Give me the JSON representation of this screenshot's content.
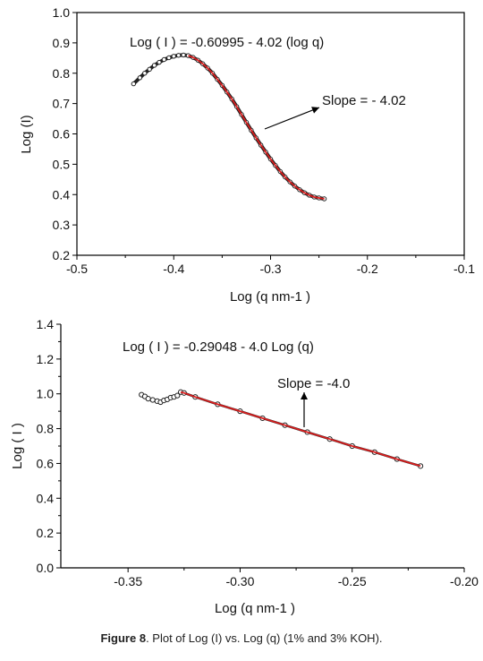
{
  "chart_data": [
    {
      "type": "scatter",
      "ylabel": "Log (I)",
      "xlabel": "Log (q nm-1 )",
      "xlim": [
        -0.5,
        -0.1
      ],
      "ylim": [
        0.2,
        1.0
      ],
      "xticks": [
        "-0.5",
        "-0.4",
        "-0.3",
        "-0.2",
        "-0.1"
      ],
      "yticks": [
        "0.2",
        "0.3",
        "0.4",
        "0.5",
        "0.6",
        "0.7",
        "0.8",
        "0.9",
        "1.0"
      ],
      "equation": "Log ( I ) = -0.60995 - 4.02 (log q)",
      "slope_label": "Slope = - 4.02",
      "fit_color": "#d81e1e",
      "points": {
        "x": [
          -0.4415,
          -0.435,
          -0.43,
          -0.425,
          -0.42,
          -0.415,
          -0.41,
          -0.405,
          -0.4,
          -0.395,
          -0.39,
          -0.385,
          -0.38,
          -0.375,
          -0.37,
          -0.365,
          -0.36,
          -0.355,
          -0.35,
          -0.345,
          -0.34,
          -0.335,
          -0.33,
          -0.325,
          -0.32,
          -0.315,
          -0.31,
          -0.305,
          -0.3,
          -0.295,
          -0.29,
          -0.285,
          -0.28,
          -0.275,
          -0.27,
          -0.265,
          -0.26,
          -0.255,
          -0.25,
          -0.2445
        ],
        "y": [
          0.765,
          0.785,
          0.8,
          0.813,
          0.826,
          0.836,
          0.845,
          0.851,
          0.856,
          0.859,
          0.86,
          0.858,
          0.852,
          0.843,
          0.831,
          0.817,
          0.8,
          0.78,
          0.76,
          0.738,
          0.715,
          0.69,
          0.664,
          0.638,
          0.612,
          0.587,
          0.563,
          0.54,
          0.517,
          0.496,
          0.476,
          0.458,
          0.442,
          0.428,
          0.416,
          0.406,
          0.398,
          0.392,
          0.389,
          0.386
        ]
      },
      "fit_x_range": [
        -0.385,
        -0.2445
      ]
    },
    {
      "type": "scatter",
      "ylabel": "Log ( I )",
      "xlabel": "Log (q nm-1 )",
      "xlim": [
        -0.38,
        -0.2
      ],
      "ylim": [
        0.0,
        1.4
      ],
      "xticks": [
        "-0.35",
        "-0.30",
        "-0.25",
        "-0.20"
      ],
      "yticks": [
        "0.0",
        "0.2",
        "0.4",
        "0.6",
        "0.8",
        "1.0",
        "1.2",
        "1.4"
      ],
      "equation": "Log ( I ) = -0.29048 - 4.0 Log (q)",
      "slope_label": "Slope = -4.0",
      "fit_color": "#d81e1e",
      "points": {
        "x": [
          -0.344,
          -0.3425,
          -0.341,
          -0.339,
          -0.337,
          -0.3355,
          -0.334,
          -0.3325,
          -0.331,
          -0.3295,
          -0.328,
          -0.3265,
          -0.325,
          -0.32,
          -0.31,
          -0.3,
          -0.29,
          -0.28,
          -0.27,
          -0.26,
          -0.25,
          -0.24,
          -0.23,
          -0.2195
        ],
        "y": [
          0.995,
          0.985,
          0.972,
          0.965,
          0.958,
          0.952,
          0.962,
          0.968,
          0.978,
          0.982,
          0.99,
          1.01,
          1.005,
          0.982,
          0.94,
          0.9,
          0.86,
          0.82,
          0.78,
          0.74,
          0.7,
          0.665,
          0.625,
          0.585
        ]
      },
      "fit_x_range": [
        -0.3265,
        -0.2195
      ]
    }
  ],
  "caption": {
    "label": "Figure 8",
    "text": ". Plot of Log (I) vs. Log (q) (1% and 3% KOH)."
  }
}
